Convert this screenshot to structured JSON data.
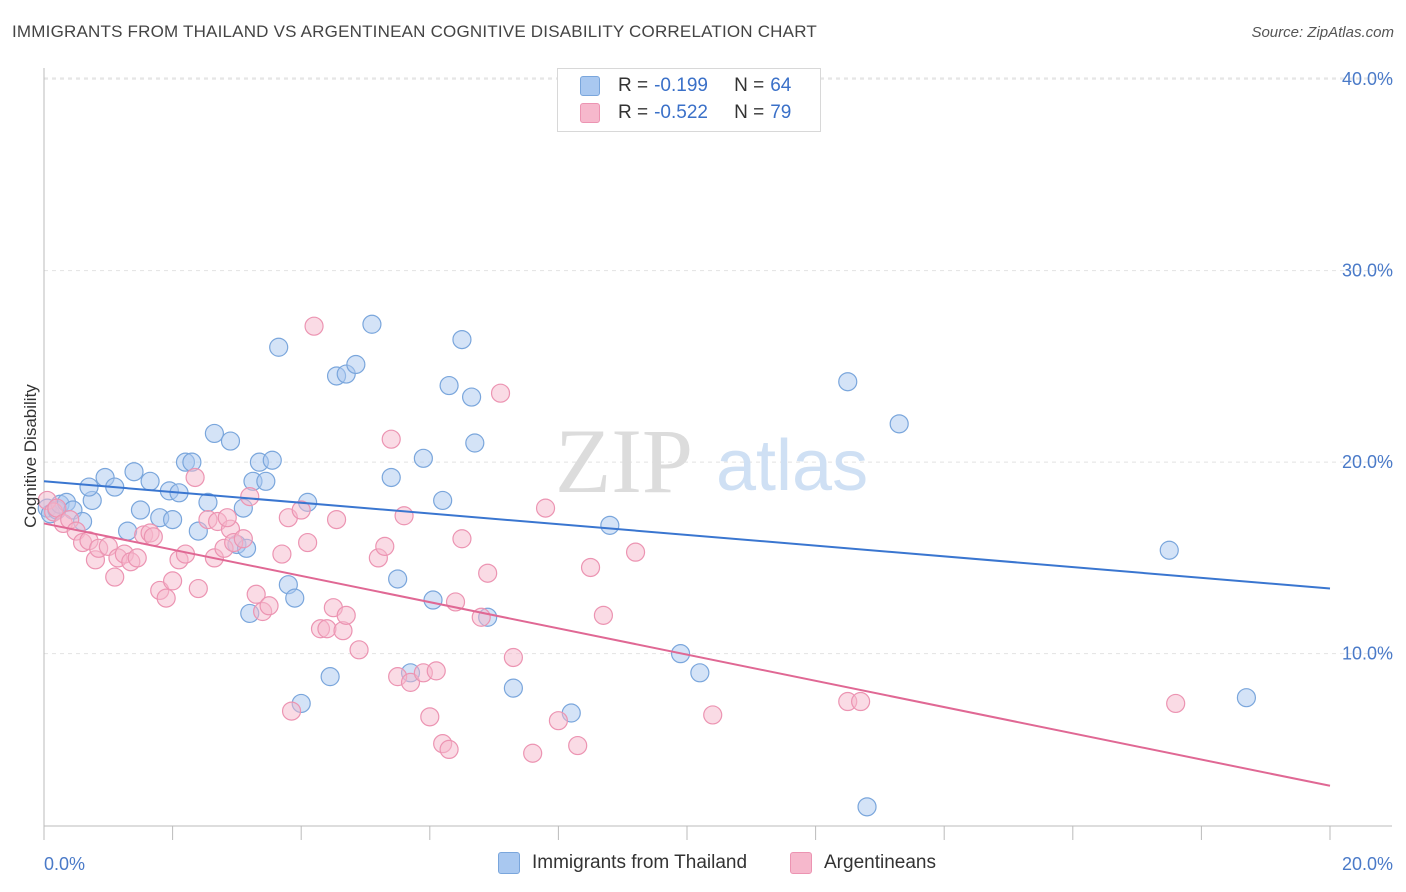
{
  "title": "IMMIGRANTS FROM THAILAND VS ARGENTINEAN COGNITIVE DISABILITY CORRELATION CHART",
  "source": "Source: ZipAtlas.com",
  "watermark": {
    "zip": "ZIP",
    "atlas": "atlas"
  },
  "legend_top": [
    {
      "r_label": "R =",
      "r_value": "-0.199",
      "n_label": "N =",
      "n_value": "64"
    },
    {
      "r_label": "R =",
      "r_value": "-0.522",
      "n_label": "N =",
      "n_value": "79"
    }
  ],
  "colors": {
    "blue_fill": "#a9c8f0",
    "blue_stroke": "#7aa6dc",
    "blue_line": "#3a76d0",
    "pink_fill": "#f6b8cc",
    "pink_stroke": "#ec94b2",
    "pink_line": "#e06894",
    "grid": "#e2e2e2",
    "tick_label": "#4a7ac8"
  },
  "chart_data": {
    "type": "scatter",
    "title": "IMMIGRANTS FROM THAILAND VS ARGENTINEAN COGNITIVE DISABILITY CORRELATION CHART",
    "xlabel": "",
    "ylabel": "Cognitive Disability",
    "xlim": [
      0,
      20
    ],
    "ylim": [
      1,
      41
    ],
    "x_tick_labels": [
      "0.0%",
      "20.0%"
    ],
    "y_ticks": [
      10,
      20,
      30,
      40
    ],
    "y_tick_labels": [
      "10.0%",
      "20.0%",
      "30.0%",
      "40.0%"
    ],
    "grid": true,
    "legend_position": "bottom",
    "series": [
      {
        "name": "Immigrants from Thailand",
        "r": -0.199,
        "n": 64,
        "trend": {
          "x": [
            0,
            20
          ],
          "y": [
            19.0,
            13.4
          ]
        },
        "points": [
          [
            0.05,
            17.6
          ],
          [
            0.1,
            17.3
          ],
          [
            0.2,
            17.5
          ],
          [
            0.25,
            17.8
          ],
          [
            0.35,
            17.9
          ],
          [
            0.45,
            17.5
          ],
          [
            0.6,
            16.9
          ],
          [
            0.75,
            18.0
          ],
          [
            0.7,
            18.7
          ],
          [
            0.95,
            19.2
          ],
          [
            1.1,
            18.7
          ],
          [
            1.3,
            16.4
          ],
          [
            1.4,
            19.5
          ],
          [
            1.5,
            17.5
          ],
          [
            1.65,
            19.0
          ],
          [
            1.8,
            17.1
          ],
          [
            1.95,
            18.5
          ],
          [
            2.0,
            17.0
          ],
          [
            2.1,
            18.4
          ],
          [
            2.2,
            20.0
          ],
          [
            2.3,
            20.0
          ],
          [
            2.4,
            16.4
          ],
          [
            2.55,
            17.9
          ],
          [
            2.65,
            21.5
          ],
          [
            2.9,
            21.1
          ],
          [
            3.0,
            15.7
          ],
          [
            3.1,
            17.6
          ],
          [
            3.25,
            19.0
          ],
          [
            3.15,
            15.5
          ],
          [
            3.2,
            12.1
          ],
          [
            3.35,
            20.0
          ],
          [
            3.45,
            19.0
          ],
          [
            3.55,
            20.1
          ],
          [
            3.65,
            26.0
          ],
          [
            3.8,
            13.6
          ],
          [
            3.9,
            12.9
          ],
          [
            4.0,
            7.4
          ],
          [
            4.1,
            17.9
          ],
          [
            4.45,
            8.8
          ],
          [
            4.55,
            24.5
          ],
          [
            4.7,
            24.6
          ],
          [
            4.85,
            25.1
          ],
          [
            5.1,
            27.2
          ],
          [
            5.4,
            19.2
          ],
          [
            5.5,
            13.9
          ],
          [
            5.7,
            9.0
          ],
          [
            5.9,
            20.2
          ],
          [
            6.05,
            12.8
          ],
          [
            6.2,
            18.0
          ],
          [
            6.3,
            24.0
          ],
          [
            6.5,
            26.4
          ],
          [
            6.65,
            23.4
          ],
          [
            6.7,
            21.0
          ],
          [
            6.9,
            11.9
          ],
          [
            7.3,
            8.2
          ],
          [
            8.2,
            6.9
          ],
          [
            8.8,
            16.7
          ],
          [
            9.9,
            10.0
          ],
          [
            10.2,
            9.0
          ],
          [
            12.5,
            24.2
          ],
          [
            12.8,
            2.0
          ],
          [
            13.3,
            22.0
          ],
          [
            17.5,
            15.4
          ],
          [
            18.7,
            7.7
          ]
        ]
      },
      {
        "name": "Argentineans",
        "r": -0.522,
        "n": 79,
        "trend": {
          "x": [
            0,
            20
          ],
          "y": [
            16.8,
            3.1
          ]
        },
        "points": [
          [
            0.05,
            18.0
          ],
          [
            0.15,
            17.4
          ],
          [
            0.2,
            17.6
          ],
          [
            0.3,
            16.8
          ],
          [
            0.4,
            17.0
          ],
          [
            0.5,
            16.4
          ],
          [
            0.6,
            15.8
          ],
          [
            0.7,
            15.9
          ],
          [
            0.8,
            14.9
          ],
          [
            0.85,
            15.5
          ],
          [
            1.0,
            15.6
          ],
          [
            1.1,
            14.0
          ],
          [
            1.15,
            15.0
          ],
          [
            1.25,
            15.2
          ],
          [
            1.35,
            14.8
          ],
          [
            1.45,
            15.0
          ],
          [
            1.55,
            16.2
          ],
          [
            1.65,
            16.3
          ],
          [
            1.7,
            16.1
          ],
          [
            1.8,
            13.3
          ],
          [
            1.9,
            12.9
          ],
          [
            2.0,
            13.8
          ],
          [
            2.1,
            14.9
          ],
          [
            2.2,
            15.2
          ],
          [
            2.35,
            19.2
          ],
          [
            2.4,
            13.4
          ],
          [
            2.55,
            17.0
          ],
          [
            2.65,
            15.0
          ],
          [
            2.7,
            16.9
          ],
          [
            2.8,
            15.5
          ],
          [
            2.9,
            16.5
          ],
          [
            2.95,
            15.8
          ],
          [
            3.1,
            16.0
          ],
          [
            3.2,
            18.2
          ],
          [
            3.3,
            13.1
          ],
          [
            3.4,
            12.2
          ],
          [
            3.5,
            12.5
          ],
          [
            3.7,
            15.2
          ],
          [
            3.8,
            17.1
          ],
          [
            3.85,
            7.0
          ],
          [
            4.0,
            17.5
          ],
          [
            4.1,
            15.8
          ],
          [
            4.2,
            27.1
          ],
          [
            4.3,
            11.3
          ],
          [
            4.4,
            11.3
          ],
          [
            4.5,
            12.4
          ],
          [
            4.55,
            17.0
          ],
          [
            4.65,
            11.2
          ],
          [
            4.7,
            12.0
          ],
          [
            4.9,
            10.2
          ],
          [
            5.2,
            15.0
          ],
          [
            5.3,
            15.6
          ],
          [
            5.4,
            21.2
          ],
          [
            5.5,
            8.8
          ],
          [
            5.6,
            17.2
          ],
          [
            5.7,
            8.5
          ],
          [
            5.9,
            9.0
          ],
          [
            6.0,
            6.7
          ],
          [
            6.1,
            9.1
          ],
          [
            6.2,
            5.3
          ],
          [
            6.3,
            5.0
          ],
          [
            6.4,
            12.7
          ],
          [
            6.5,
            16.0
          ],
          [
            6.8,
            11.9
          ],
          [
            6.9,
            14.2
          ],
          [
            7.1,
            23.6
          ],
          [
            7.3,
            9.8
          ],
          [
            7.6,
            4.8
          ],
          [
            7.8,
            17.6
          ],
          [
            8.0,
            6.5
          ],
          [
            8.3,
            5.2
          ],
          [
            8.5,
            14.5
          ],
          [
            8.7,
            12.0
          ],
          [
            9.2,
            15.3
          ],
          [
            10.4,
            6.8
          ],
          [
            12.5,
            7.5
          ],
          [
            12.7,
            7.5
          ],
          [
            17.6,
            7.4
          ],
          [
            2.85,
            17.1
          ]
        ]
      }
    ]
  },
  "legend_bottom": [
    {
      "label": "Immigrants from Thailand"
    },
    {
      "label": "Argentineans"
    }
  ]
}
